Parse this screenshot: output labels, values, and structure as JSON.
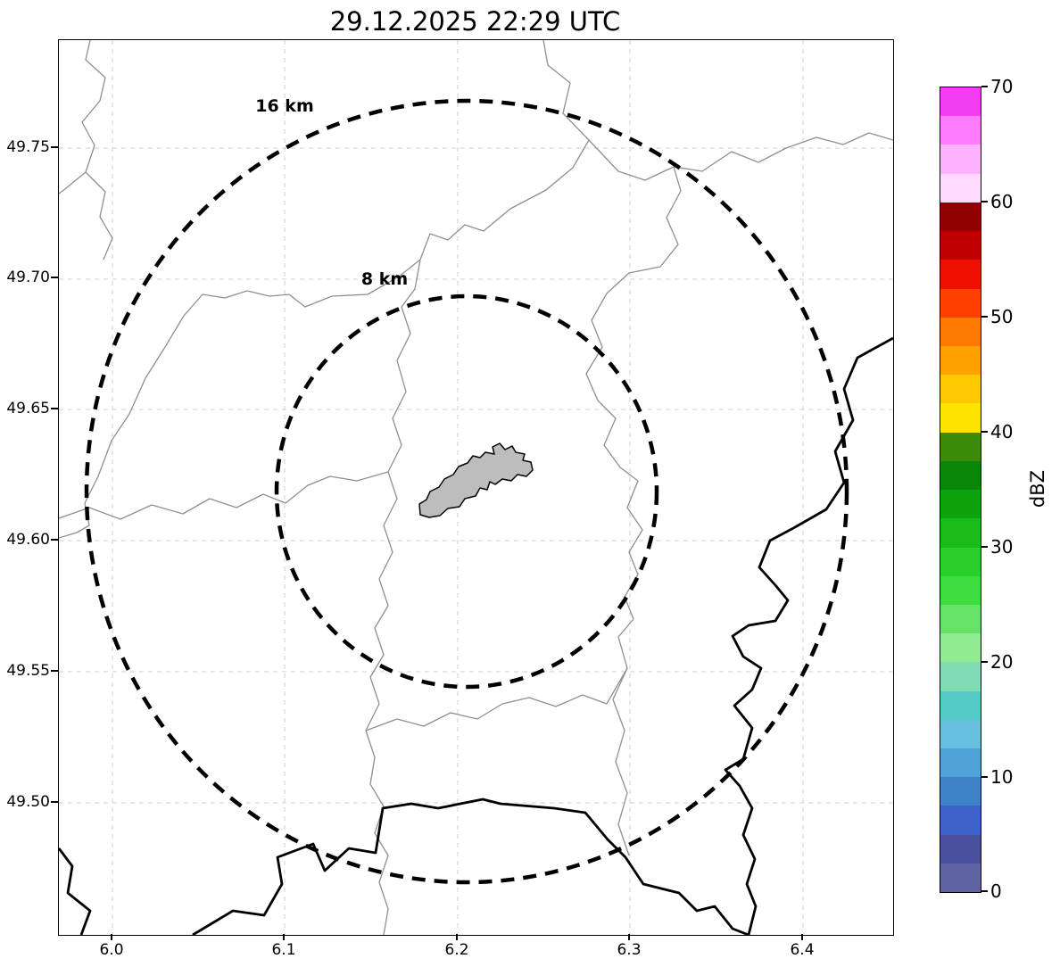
{
  "title": "29.12.2025 22:29 UTC",
  "axes": {
    "x_ticks": [
      "6.0",
      "6.1",
      "6.2",
      "6.3",
      "6.4"
    ],
    "y_ticks": [
      "49.75",
      "49.70",
      "49.65",
      "49.60",
      "49.55",
      "49.50"
    ]
  },
  "range_rings": [
    {
      "label": "16 km"
    },
    {
      "label": "8 km"
    }
  ],
  "colorbar": {
    "label": "dBZ",
    "tick_labels_top_to_bottom": [
      "70",
      "60",
      "50",
      "40",
      "30",
      "20",
      "10",
      "0"
    ],
    "colors_bottom_to_top": [
      "#5e63a3",
      "#4b50a0",
      "#3c64c8",
      "#3e82c8",
      "#4fa3d8",
      "#68c0e0",
      "#55cbc8",
      "#80dcb4",
      "#90ec90",
      "#66e366",
      "#3edc3e",
      "#2bcf2b",
      "#18bb18",
      "#0da30d",
      "#078607",
      "#3d8c08",
      "#ffe400",
      "#ffc800",
      "#ffa200",
      "#ff7a00",
      "#ff4000",
      "#ef0f00",
      "#c00000",
      "#900000",
      "#ffdcff",
      "#ffb2ff",
      "#ff7bff",
      "#f23df2"
    ]
  },
  "chart_data": {
    "type": "heatmap",
    "title": "29.12.2025 22:29 UTC",
    "xlabel": "",
    "ylabel": "",
    "x_ticks": [
      6.0,
      6.1,
      6.2,
      6.3,
      6.4
    ],
    "y_ticks": [
      49.75,
      49.7,
      49.65,
      49.6,
      49.55,
      49.5
    ],
    "xlim": [
      5.969,
      6.452
    ],
    "ylim": [
      49.449,
      49.791
    ],
    "grid": true,
    "colorbar": {
      "label": "dBZ",
      "range": [
        0,
        70
      ],
      "ticks": [
        0,
        10,
        20,
        30,
        40,
        50,
        60,
        70
      ],
      "step_dbz": 2.5
    },
    "reflectivity_echoes": [],
    "range_rings": [
      {
        "label": "8 km",
        "radius_km": 8,
        "center_lon": 6.204,
        "center_lat": 49.62
      },
      {
        "label": "16 km",
        "radius_km": 16,
        "center_lon": 6.204,
        "center_lat": 49.62
      }
    ],
    "map_features": [
      "thin gray administrative/river boundaries",
      "thick black country border lines (east and south)",
      "gray filled airport outline polygon at ring center"
    ]
  }
}
